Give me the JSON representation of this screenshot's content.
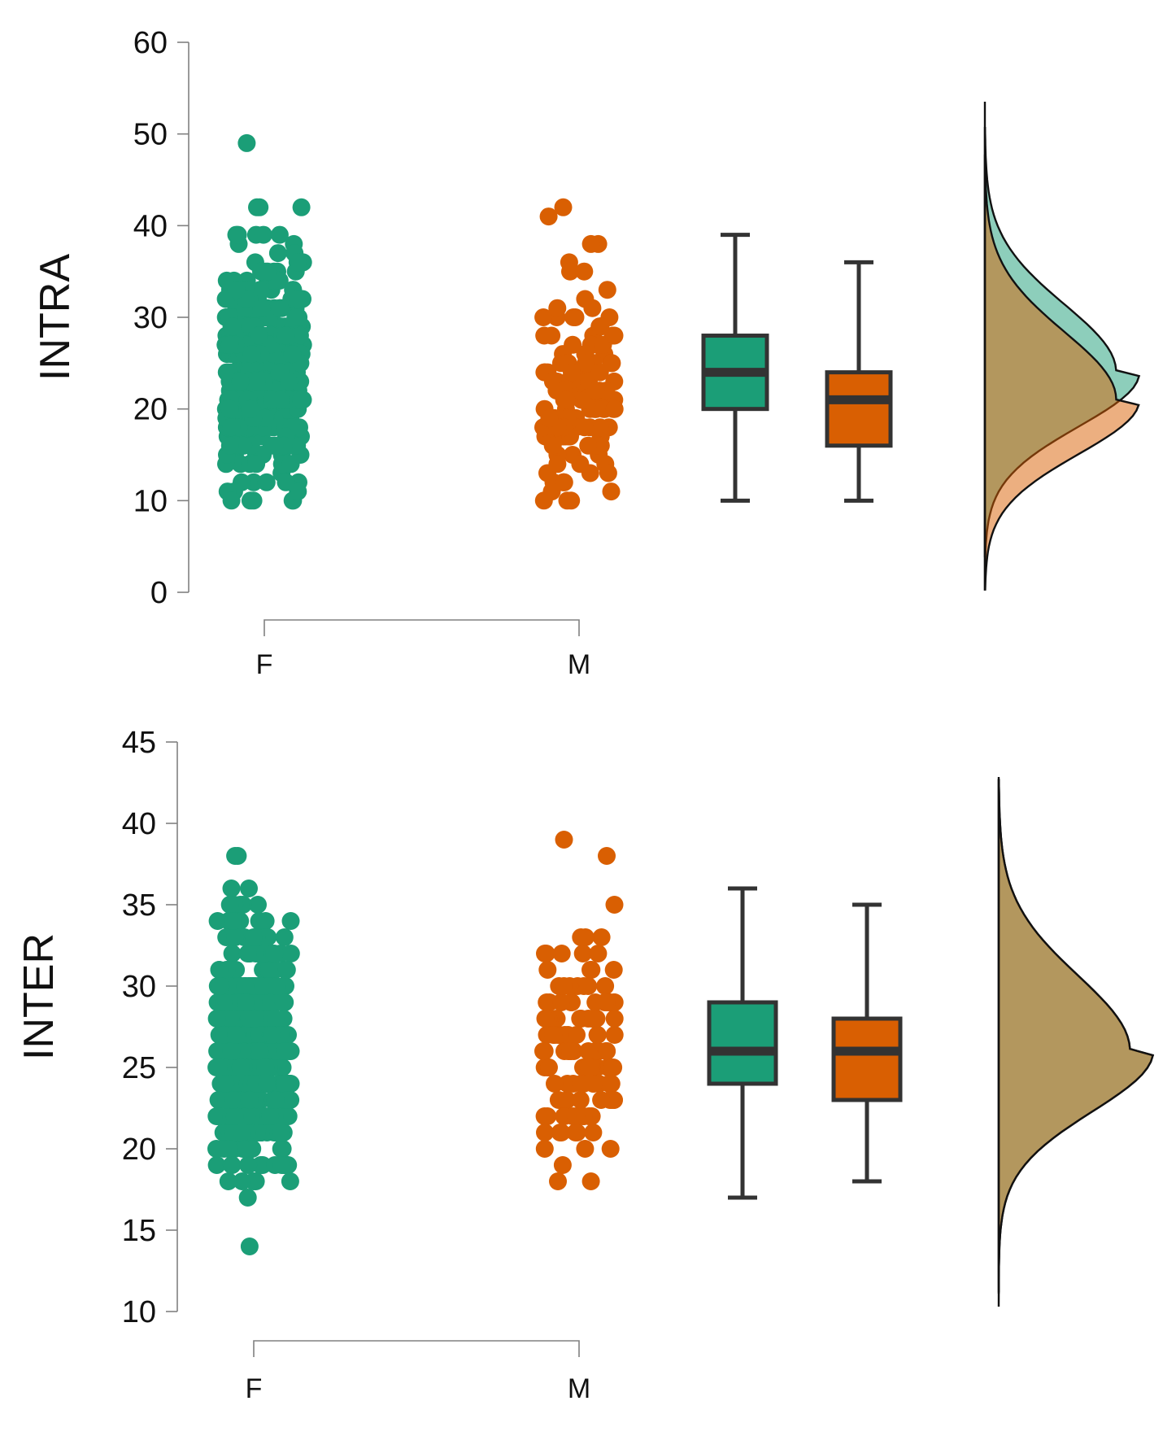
{
  "chart_data": [
    {
      "type": "raincloud",
      "ylabel": "INTRA",
      "ylim": [
        0,
        60
      ],
      "yticks": [
        0,
        10,
        20,
        30,
        40,
        50,
        60
      ],
      "categories": [
        "F",
        "M"
      ],
      "series": [
        {
          "name": "F",
          "color": "#1b9e77",
          "points": [
            49,
            42,
            42,
            42,
            39,
            39,
            38,
            38,
            37,
            36,
            35,
            35,
            34,
            34,
            33,
            33,
            32,
            32,
            31,
            31,
            30,
            30,
            29,
            28,
            27,
            26,
            25,
            24,
            23,
            22,
            21,
            20,
            19,
            18,
            17,
            16,
            15,
            14,
            13,
            12,
            12,
            12,
            11,
            11,
            10
          ],
          "box": {
            "min": 10,
            "q1": 20,
            "median": 24,
            "q3": 28,
            "max": 39
          }
        },
        {
          "name": "M",
          "color": "#d95f02",
          "points": [
            42,
            41,
            38,
            38,
            36,
            35,
            33,
            32,
            30,
            29,
            29,
            28,
            28,
            27,
            27,
            26,
            25,
            25,
            24,
            24,
            23,
            22,
            22,
            21,
            21,
            20,
            20,
            19,
            18,
            17,
            16,
            15,
            15,
            14,
            13,
            12,
            11,
            11,
            10,
            10,
            10
          ],
          "box": {
            "min": 10,
            "q1": 16,
            "median": 21,
            "q3": 24,
            "max": 36
          }
        }
      ]
    },
    {
      "type": "raincloud",
      "ylabel": "INTER",
      "ylim": [
        10,
        45
      ],
      "yticks": [
        10,
        15,
        20,
        25,
        30,
        35,
        40,
        45
      ],
      "categories": [
        "F",
        "M"
      ],
      "series": [
        {
          "name": "F",
          "color": "#1b9e77",
          "points": [
            38,
            38,
            36,
            35,
            35,
            35,
            35,
            34,
            34,
            34,
            33,
            33,
            32,
            32,
            31,
            31,
            30,
            30,
            29,
            28,
            27,
            26,
            25,
            24,
            23,
            22,
            21,
            20,
            20,
            19,
            19,
            18,
            18,
            17,
            14
          ],
          "box": {
            "min": 17,
            "q1": 24,
            "median": 26,
            "q3": 29,
            "max": 36
          }
        },
        {
          "name": "M",
          "color": "#d95f02",
          "points": [
            39,
            38,
            35,
            33,
            32,
            32,
            32,
            31,
            30,
            30,
            30,
            29,
            29,
            28,
            28,
            27,
            27,
            26,
            26,
            25,
            25,
            24,
            24,
            23,
            23,
            22,
            22,
            21,
            21,
            20,
            20,
            20,
            19,
            18
          ],
          "box": {
            "min": 18,
            "q1": 23,
            "median": 26,
            "q3": 28,
            "max": 35
          }
        }
      ]
    }
  ]
}
